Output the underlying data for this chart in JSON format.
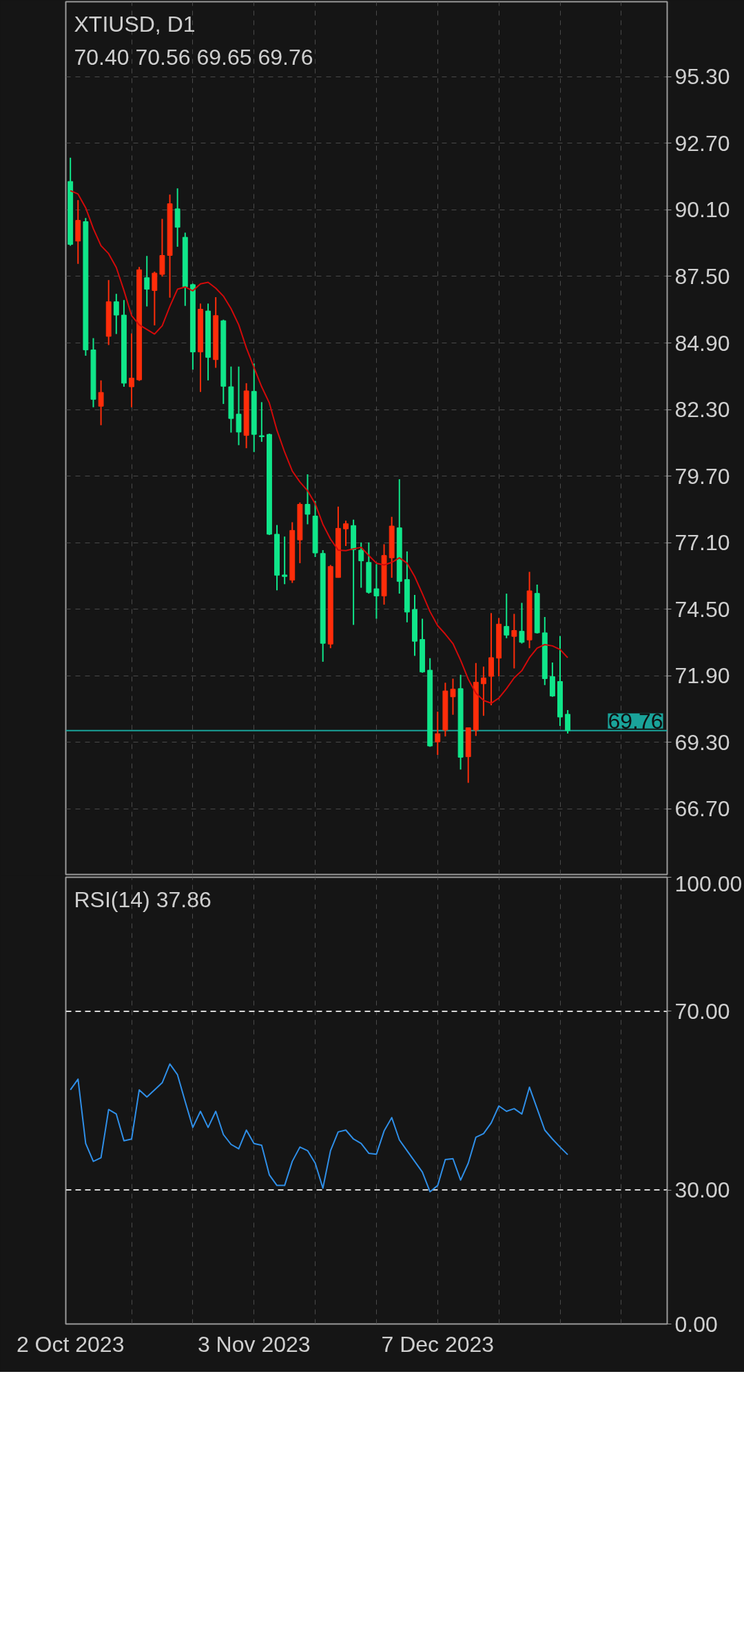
{
  "chart_data": [
    {
      "type": "candlestick",
      "title": "XTIUSD, D1",
      "subtitle": "70.40 70.56 69.65 69.76",
      "categories": [
        null,
        null,
        null,
        null,
        null,
        null,
        null,
        null,
        null,
        null,
        null,
        null,
        null,
        null,
        null,
        null,
        null,
        null,
        null,
        null,
        null,
        null,
        null,
        null,
        null,
        null,
        null,
        null,
        null,
        null,
        null,
        null,
        null,
        null,
        null,
        null,
        null,
        null,
        null,
        null,
        null,
        null,
        null,
        null,
        null,
        null,
        null,
        null,
        null,
        null,
        null,
        null,
        null,
        null,
        null,
        null,
        null,
        null,
        null,
        null,
        null,
        null,
        null,
        null,
        null,
        null
      ],
      "ohlc": [
        [
          91.21,
          92.14,
          88.7,
          88.75
        ],
        [
          88.88,
          90.48,
          87.99,
          89.69
        ],
        [
          89.64,
          89.78,
          84.4,
          84.63
        ],
        [
          84.63,
          85.09,
          82.39,
          82.7
        ],
        [
          82.43,
          83.44,
          81.69,
          82.97
        ],
        [
          85.16,
          87.36,
          84.82,
          86.51
        ],
        [
          86.51,
          86.82,
          85.25,
          85.99
        ],
        [
          85.99,
          86.58,
          83.19,
          83.33
        ],
        [
          83.19,
          85.27,
          82.39,
          83.53
        ],
        [
          83.46,
          87.87,
          83.42,
          87.76
        ],
        [
          87.45,
          88.3,
          86.33,
          87.0
        ],
        [
          86.95,
          87.69,
          85.59,
          87.63
        ],
        [
          87.58,
          89.75,
          87.49,
          88.32
        ],
        [
          88.32,
          90.7,
          86.67,
          90.34
        ],
        [
          90.14,
          90.94,
          88.66,
          89.42
        ],
        [
          89.03,
          89.21,
          86.35,
          87.09
        ],
        [
          87.18,
          87.22,
          83.86,
          84.55
        ],
        [
          84.55,
          86.44,
          82.99,
          86.22
        ],
        [
          86.15,
          86.44,
          83.44,
          84.34
        ],
        [
          84.25,
          86.69,
          83.93,
          85.97
        ],
        [
          85.77,
          85.81,
          82.52,
          83.21
        ],
        [
          83.19,
          83.98,
          81.4,
          81.95
        ],
        [
          82.12,
          83.98,
          80.91,
          81.42
        ],
        [
          81.29,
          83.33,
          80.79,
          83.03
        ],
        [
          83.01,
          84.1,
          80.64,
          81.33
        ],
        [
          81.28,
          82.59,
          81.04,
          81.24
        ],
        [
          81.33,
          81.36,
          77.4,
          77.43
        ],
        [
          77.43,
          77.79,
          75.24,
          75.83
        ],
        [
          75.84,
          77.34,
          75.48,
          75.78
        ],
        [
          75.64,
          77.9,
          75.53,
          77.58
        ],
        [
          77.21,
          78.67,
          76.3,
          78.6
        ],
        [
          78.6,
          79.77,
          77.82,
          78.21
        ],
        [
          78.14,
          78.73,
          76.54,
          76.7
        ],
        [
          76.68,
          76.81,
          72.45,
          73.17
        ],
        [
          73.14,
          76.23,
          72.98,
          76.17
        ],
        [
          75.74,
          78.51,
          75.73,
          77.66
        ],
        [
          77.64,
          77.96,
          76.97,
          77.84
        ],
        [
          77.77,
          78.0,
          73.89,
          76.83
        ],
        [
          76.81,
          77.11,
          75.34,
          76.39
        ],
        [
          76.33,
          77.11,
          75.11,
          75.16
        ],
        [
          75.3,
          76.26,
          74.13,
          75.02
        ],
        [
          75.02,
          77.04,
          74.68,
          76.6
        ],
        [
          76.51,
          78.11,
          75.73,
          77.75
        ],
        [
          77.68,
          79.58,
          75.11,
          75.59
        ],
        [
          75.66,
          76.76,
          73.99,
          74.39
        ],
        [
          74.49,
          75.06,
          72.68,
          73.25
        ],
        [
          73.32,
          74.13,
          72.02,
          72.05
        ],
        [
          72.12,
          72.59,
          69.13,
          69.16
        ],
        [
          69.32,
          70.5,
          68.81,
          69.64
        ],
        [
          69.78,
          71.63,
          69.53,
          71.31
        ],
        [
          71.08,
          71.79,
          70.38,
          71.38
        ],
        [
          71.4,
          71.94,
          68.24,
          68.72
        ],
        [
          68.74,
          69.87,
          67.72,
          69.87
        ],
        [
          69.78,
          72.4,
          69.55,
          71.65
        ],
        [
          71.59,
          72.26,
          70.34,
          71.82
        ],
        [
          71.88,
          74.35,
          70.75,
          72.61
        ],
        [
          72.59,
          74.16,
          71.88,
          73.92
        ],
        [
          73.83,
          75.11,
          73.37,
          73.49
        ],
        [
          73.44,
          74.32,
          72.19,
          73.67
        ],
        [
          73.64,
          74.75,
          73.16,
          73.21
        ],
        [
          73.3,
          75.96,
          72.98,
          75.22
        ],
        [
          75.12,
          75.46,
          73.55,
          73.58
        ],
        [
          73.58,
          74.2,
          71.54,
          71.79
        ],
        [
          71.87,
          72.42,
          71.08,
          71.11
        ],
        [
          71.68,
          73.46,
          69.94,
          70.29
        ],
        [
          70.4,
          70.56,
          69.65,
          69.76
        ]
      ],
      "colors": [
        "#10e68a",
        "#ff2d0a",
        "#10e68a",
        "#10e68a",
        "#ff2d0a",
        "#ff2d0a",
        "#10e68a",
        "#10e68a",
        "#ff2d0a",
        "#ff2d0a",
        "#10e68a",
        "#ff2d0a",
        "#ff2d0a",
        "#ff2d0a",
        "#10e68a",
        "#10e68a",
        "#10e68a",
        "#ff2d0a",
        "#10e68a",
        "#ff2d0a",
        "#10e68a",
        "#10e68a",
        "#10e68a",
        "#ff2d0a",
        "#10e68a",
        "#10e68a",
        "#10e68a",
        "#10e68a",
        "#10e68a",
        "#ff2d0a",
        "#ff2d0a",
        "#10e68a",
        "#10e68a",
        "#10e68a",
        "#ff2d0a",
        "#ff2d0a",
        "#ff2d0a",
        "#10e68a",
        "#10e68a",
        "#10e68a",
        "#10e68a",
        "#ff2d0a",
        "#ff2d0a",
        "#10e68a",
        "#10e68a",
        "#10e68a",
        "#10e68a",
        "#10e68a",
        "#ff2d0a",
        "#ff2d0a",
        "#ff2d0a",
        "#10e68a",
        "#ff2d0a",
        "#ff2d0a",
        "#ff2d0a",
        "#ff2d0a",
        "#ff2d0a",
        "#10e68a",
        "#ff2d0a",
        "#10e68a",
        "#ff2d0a",
        "#10e68a",
        "#10e68a",
        "#10e68a",
        "#10e68a",
        "#10e68a"
      ],
      "series": [
        {
          "type": "line",
          "color": "#d20a0a",
          "values": [
            90.85,
            90.72,
            90.18,
            89.37,
            88.7,
            88.39,
            87.85,
            86.95,
            85.97,
            85.61,
            85.43,
            85.25,
            85.57,
            86.33,
            87.0,
            87.09,
            86.94,
            87.21,
            87.27,
            87.04,
            86.73,
            86.24,
            85.61,
            84.71,
            83.94,
            83.19,
            82.56,
            81.49,
            80.64,
            79.9,
            79.47,
            79.13,
            78.62,
            77.82,
            77.24,
            76.81,
            76.79,
            76.86,
            76.92,
            76.6,
            76.3,
            76.23,
            76.33,
            76.51,
            76.3,
            75.78,
            75.11,
            74.41,
            73.86,
            73.53,
            73.16,
            72.51,
            71.77,
            71.22,
            70.94,
            70.83,
            71.03,
            71.4,
            71.82,
            72.1,
            72.61,
            72.98,
            73.12,
            73.07,
            72.93,
            72.61
          ]
        }
      ],
      "ylim": [
        64.14,
        98.23
      ],
      "yticks": [
        {
          "value": 95.3,
          "label": "95.30"
        },
        {
          "value": 92.7,
          "label": "92.70"
        },
        {
          "value": 90.1,
          "label": "90.10"
        },
        {
          "value": 87.5,
          "label": "87.50"
        },
        {
          "value": 84.9,
          "label": "84.90"
        },
        {
          "value": 82.3,
          "label": "82.30"
        },
        {
          "value": 79.7,
          "label": "79.70"
        },
        {
          "value": 77.1,
          "label": "77.10"
        },
        {
          "value": 74.5,
          "label": "74.50"
        },
        {
          "value": 71.9,
          "label": "71.90"
        },
        {
          "value": 69.3,
          "label": "69.30"
        },
        {
          "value": 66.7,
          "label": "66.70"
        }
      ],
      "grid": true,
      "tick_labels": "y",
      "ref_lines": [
        {
          "axis": "y",
          "value": 69.76,
          "label": "69.76",
          "color": "#1aa39a",
          "line_style": "solid"
        }
      ]
    },
    {
      "type": "line",
      "title": "RSI(14) 37.86",
      "categories": [
        "2 Oct 2023",
        null,
        null,
        null,
        null,
        null,
        null,
        null,
        null,
        null,
        null,
        null,
        null,
        null,
        null,
        null,
        null,
        null,
        null,
        null,
        null,
        null,
        null,
        null,
        "3 Nov 2023",
        null,
        null,
        null,
        null,
        null,
        null,
        null,
        null,
        null,
        null,
        null,
        null,
        null,
        null,
        null,
        null,
        null,
        null,
        null,
        null,
        null,
        null,
        null,
        "7 Dec 2023",
        null,
        null,
        null,
        null,
        null,
        null,
        null,
        null,
        null,
        null,
        null,
        null,
        null,
        null,
        null,
        null,
        null
      ],
      "series": [
        {
          "color": "#2f8fe8",
          "values": [
            52.4,
            54.8,
            40.4,
            36.4,
            37.2,
            48.0,
            47.0,
            41.0,
            41.4,
            52.4,
            50.8,
            52.4,
            54.0,
            58.2,
            55.8,
            49.8,
            44.0,
            47.6,
            44.0,
            47.6,
            42.4,
            40.2,
            39.2,
            43.4,
            40.4,
            40.0,
            33.4,
            31.0,
            31.0,
            36.4,
            39.6,
            38.8,
            36.0,
            30.4,
            38.8,
            43.0,
            43.4,
            41.4,
            40.4,
            38.2,
            38.0,
            43.2,
            46.2,
            41.2,
            38.8,
            36.4,
            34.0,
            29.6,
            31.0,
            36.8,
            37.0,
            32.2,
            36.0,
            41.8,
            42.6,
            45.0,
            48.8,
            47.6,
            48.2,
            47.0,
            53.0,
            48.2,
            43.4,
            41.4,
            39.6,
            37.9
          ]
        }
      ],
      "ylim": [
        0,
        100
      ],
      "yticks": [
        {
          "value": 100,
          "label": "100.00"
        },
        {
          "value": 70,
          "label": "70.00"
        },
        {
          "value": 30,
          "label": "30.00"
        },
        {
          "value": 0,
          "label": "0.00"
        }
      ],
      "grid": "x",
      "ref_lines": [
        {
          "axis": "y",
          "value": 70,
          "color": "#d8d8d8",
          "line_style": "dashed"
        },
        {
          "axis": "y",
          "value": 30,
          "color": "#d8d8d8",
          "line_style": "dashed"
        }
      ]
    }
  ]
}
